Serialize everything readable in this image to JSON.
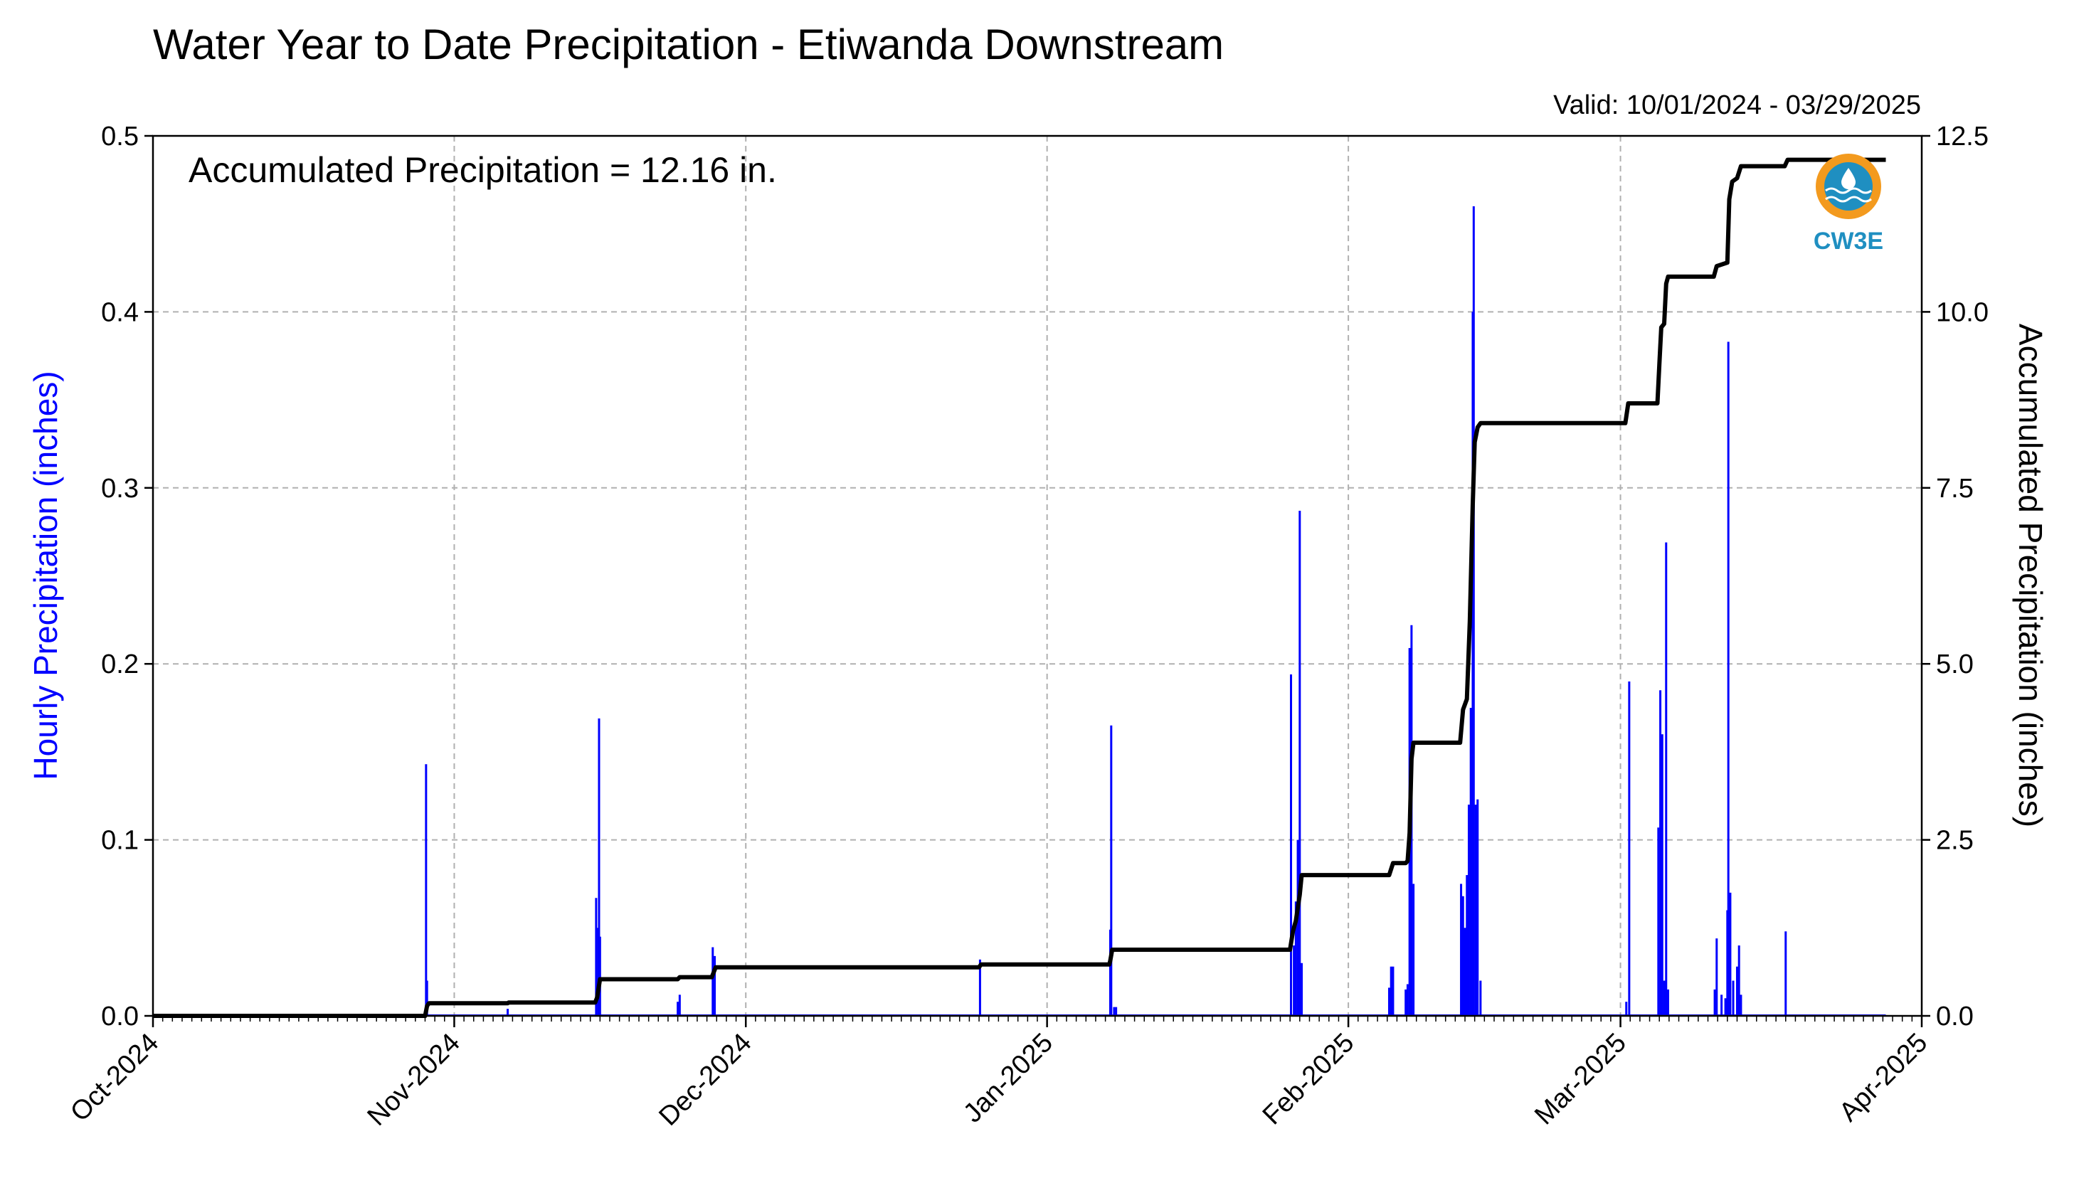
{
  "chart_data": {
    "type": "bar",
    "title": "Water Year to Date Precipitation - Etiwanda Downstream",
    "subtitle": "Valid: 10/01/2024 - 03/29/2025",
    "annotation": "Accumulated Precipitation = 12.16 in.",
    "logo_text": "CW3E",
    "ylabel_left": "Hourly Precipitation (inches)",
    "ylabel_right": "Accumulated Precipitation (inches)",
    "ylim_left": [
      0,
      0.5
    ],
    "ylim_right": [
      0,
      12.5
    ],
    "yticks_left": [
      "0.0",
      "0.1",
      "0.2",
      "0.3",
      "0.4",
      "0.5"
    ],
    "yticks_right": [
      "0.0",
      "2.5",
      "5.0",
      "7.5",
      "10.0",
      "12.5"
    ],
    "xlim_days": [
      0,
      182
    ],
    "x_ticks": [
      {
        "label": "Oct-2024",
        "day": 0
      },
      {
        "label": "Nov-2024",
        "day": 31
      },
      {
        "label": "Dec-2024",
        "day": 61
      },
      {
        "label": "Jan-2025",
        "day": 92
      },
      {
        "label": "Feb-2025",
        "day": 123
      },
      {
        "label": "Mar-2025",
        "day": 151
      },
      {
        "label": "Apr-2025",
        "day": 182
      }
    ],
    "grid": true,
    "colors": {
      "hourly": "#0000ff",
      "accumulated": "#000000",
      "grid": "#b0b0b0",
      "logo_orange": "#f39a1e",
      "logo_blue": "#1f8fc1"
    },
    "series": [
      {
        "name": "Hourly Precipitation (inches)",
        "type": "bar",
        "points": [
          [
            28.1,
            0.143
          ],
          [
            28.2,
            0.02
          ],
          [
            36.5,
            0.004
          ],
          [
            45.6,
            0.067
          ],
          [
            45.8,
            0.05
          ],
          [
            45.9,
            0.169
          ],
          [
            46.0,
            0.045
          ],
          [
            54.0,
            0.008
          ],
          [
            54.2,
            0.012
          ],
          [
            57.6,
            0.039
          ],
          [
            57.8,
            0.034
          ],
          [
            85.1,
            0.032
          ],
          [
            98.5,
            0.049
          ],
          [
            98.6,
            0.165
          ],
          [
            98.9,
            0.005
          ],
          [
            99.1,
            0.005
          ],
          [
            117.1,
            0.194
          ],
          [
            117.4,
            0.04
          ],
          [
            117.6,
            0.065
          ],
          [
            117.8,
            0.1
          ],
          [
            118.0,
            0.287
          ],
          [
            118.2,
            0.03
          ],
          [
            127.2,
            0.016
          ],
          [
            127.4,
            0.028
          ],
          [
            127.6,
            0.028
          ],
          [
            128.9,
            0.015
          ],
          [
            129.1,
            0.018
          ],
          [
            129.3,
            0.209
          ],
          [
            129.5,
            0.222
          ],
          [
            129.7,
            0.075
          ],
          [
            134.6,
            0.075
          ],
          [
            134.8,
            0.068
          ],
          [
            135.0,
            0.05
          ],
          [
            135.2,
            0.08
          ],
          [
            135.4,
            0.12
          ],
          [
            135.6,
            0.175
          ],
          [
            135.8,
            0.4
          ],
          [
            135.9,
            0.46
          ],
          [
            136.1,
            0.12
          ],
          [
            136.3,
            0.123
          ],
          [
            136.6,
            0.02
          ],
          [
            151.6,
            0.008
          ],
          [
            151.9,
            0.19
          ],
          [
            154.9,
            0.107
          ],
          [
            155.1,
            0.185
          ],
          [
            155.3,
            0.16
          ],
          [
            155.5,
            0.02
          ],
          [
            155.7,
            0.269
          ],
          [
            155.9,
            0.015
          ],
          [
            160.7,
            0.015
          ],
          [
            160.9,
            0.044
          ],
          [
            161.4,
            0.012
          ],
          [
            161.8,
            0.01
          ],
          [
            162.0,
            0.06
          ],
          [
            162.1,
            0.383
          ],
          [
            162.3,
            0.07
          ],
          [
            162.6,
            0.02
          ],
          [
            163.0,
            0.028
          ],
          [
            163.2,
            0.04
          ],
          [
            163.4,
            0.012
          ],
          [
            168.0,
            0.048
          ]
        ]
      },
      {
        "name": "Accumulated Precipitation (inches)",
        "type": "line",
        "points": [
          [
            0,
            0
          ],
          [
            28.0,
            0
          ],
          [
            28.2,
            0.14
          ],
          [
            28.4,
            0.18
          ],
          [
            36.5,
            0.18
          ],
          [
            36.6,
            0.19
          ],
          [
            45.5,
            0.19
          ],
          [
            45.7,
            0.26
          ],
          [
            46.0,
            0.52
          ],
          [
            54.0,
            0.52
          ],
          [
            54.2,
            0.55
          ],
          [
            57.5,
            0.55
          ],
          [
            57.9,
            0.69
          ],
          [
            85.0,
            0.69
          ],
          [
            85.2,
            0.73
          ],
          [
            98.4,
            0.73
          ],
          [
            98.5,
            0.78
          ],
          [
            98.7,
            0.94
          ],
          [
            117.0,
            0.94
          ],
          [
            117.3,
            1.2
          ],
          [
            117.6,
            1.35
          ],
          [
            118.0,
            1.72
          ],
          [
            118.2,
            2.0
          ],
          [
            127.2,
            2.0
          ],
          [
            127.6,
            2.17
          ],
          [
            128.9,
            2.17
          ],
          [
            129.1,
            2.2
          ],
          [
            129.3,
            2.6
          ],
          [
            129.5,
            3.65
          ],
          [
            129.7,
            3.88
          ],
          [
            134.5,
            3.88
          ],
          [
            134.8,
            4.35
          ],
          [
            135.2,
            4.5
          ],
          [
            135.5,
            5.6
          ],
          [
            135.8,
            7.25
          ],
          [
            136.0,
            8.15
          ],
          [
            136.3,
            8.36
          ],
          [
            136.6,
            8.42
          ],
          [
            151.5,
            8.42
          ],
          [
            151.8,
            8.7
          ],
          [
            154.8,
            8.7
          ],
          [
            155.0,
            9.25
          ],
          [
            155.2,
            9.78
          ],
          [
            155.5,
            9.83
          ],
          [
            155.7,
            10.4
          ],
          [
            155.9,
            10.5
          ],
          [
            160.6,
            10.5
          ],
          [
            160.9,
            10.65
          ],
          [
            162.0,
            10.7
          ],
          [
            162.2,
            11.6
          ],
          [
            162.5,
            11.85
          ],
          [
            163.0,
            11.9
          ],
          [
            163.4,
            12.07
          ],
          [
            167.9,
            12.07
          ],
          [
            168.2,
            12.16
          ],
          [
            178.3,
            12.16
          ]
        ]
      }
    ]
  }
}
